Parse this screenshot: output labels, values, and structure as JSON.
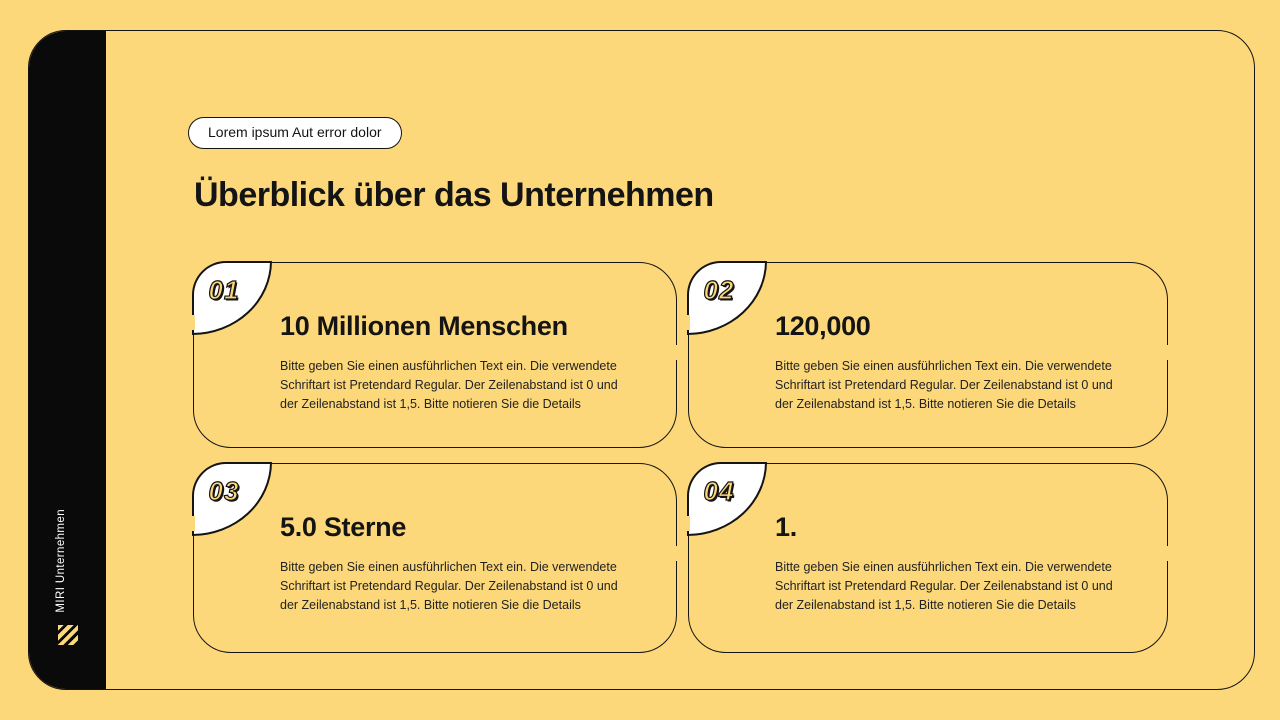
{
  "slide": {
    "background_color": "#FCD87A",
    "outline_color": "#141414"
  },
  "sidebar": {
    "brand_text": "MIRI Unternehmen",
    "logo_icon": "diagonal-stripes-logo",
    "background_color": "#0A0A0A",
    "text_color": "#FFFFFF"
  },
  "header": {
    "tag_label": "Lorem ipsum Aut error dolor",
    "title": "Überblick über das Unternehmen"
  },
  "cards": [
    {
      "number": "01",
      "title": "10 Millionen Menschen",
      "body": [
        "Bitte geben Sie einen ausführlichen Text ein. Die verwendete",
        "Schriftart ist Pretendard Regular. Der Zeilenabstand ist 0 und",
        "der Zeilenabstand ist 1,5. Bitte notieren Sie die Details"
      ]
    },
    {
      "number": "02",
      "title": "120,000",
      "body": [
        "Bitte geben Sie einen ausführlichen Text ein. Die verwendete",
        "Schriftart ist Pretendard Regular. Der Zeilenabstand ist 0 und",
        "der Zeilenabstand ist 1,5. Bitte notieren Sie die Details"
      ]
    },
    {
      "number": "03",
      "title": "5.0 Sterne",
      "body": [
        "Bitte geben Sie einen ausführlichen Text ein. Die verwendete",
        "Schriftart ist Pretendard Regular. Der Zeilenabstand ist 0 und",
        "der Zeilenabstand ist 1,5. Bitte notieren Sie die Details"
      ]
    },
    {
      "number": "04",
      "title": "1.",
      "body": [
        "Bitte geben Sie einen ausführlichen Text ein. Die verwendete",
        "Schriftart ist Pretendard Regular. Der Zeilenabstand ist 0 und",
        "der Zeilenabstand ist 1,5. Bitte notieren Sie die Details"
      ]
    }
  ],
  "colors": {
    "background": "#FCD87A",
    "ink": "#141414",
    "card_badge_fill": "#FFFFFF",
    "number_fill": "#FCD87A"
  }
}
